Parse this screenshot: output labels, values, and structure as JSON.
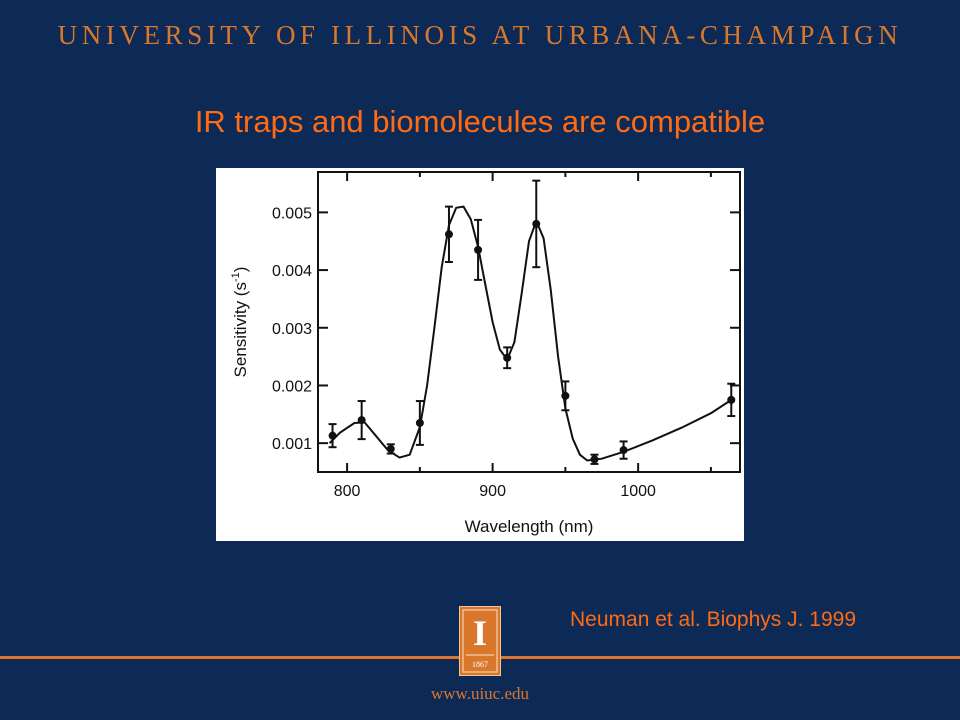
{
  "header": {
    "institution": "UNIVERSITY OF ILLINOIS AT URBANA-CHAMPAIGN"
  },
  "slide": {
    "title": "IR traps and biomolecules are compatible",
    "citation": "Neuman et al. Biophys J. 1999"
  },
  "footer": {
    "url": "www.uiuc.edu",
    "logo_year": "1867",
    "logo_letter": "I"
  },
  "colors": {
    "background": "#0c2a55",
    "accent_orange": "#ff6a13",
    "header_orange": "#d9782d",
    "chart_background": "#ffffff",
    "chart_ink": "#111111"
  },
  "chart_data": {
    "type": "scatter",
    "title": "",
    "xlabel": "Wavelength (nm)",
    "ylabel": "Sensitivity (s⁻¹)",
    "ylabel_base": "Sensitivity (s",
    "ylabel_sup": "-1",
    "ylabel_end": ")",
    "xlim": [
      780,
      1070
    ],
    "ylim": [
      0.0005,
      0.0057
    ],
    "xticks": [
      800,
      900,
      1000
    ],
    "xtick_labels": [
      "800",
      "900",
      "1000"
    ],
    "yticks": [
      0.001,
      0.002,
      0.003,
      0.004,
      0.005
    ],
    "ytick_labels": [
      "0.001",
      "0.002",
      "0.003",
      "0.004",
      "0.005"
    ],
    "grid": false,
    "legend": "none",
    "points": [
      {
        "x": 790,
        "y": 0.00113,
        "err": 0.0002
      },
      {
        "x": 810,
        "y": 0.0014,
        "err": 0.00033
      },
      {
        "x": 830,
        "y": 0.0009,
        "err": 8e-05
      },
      {
        "x": 850,
        "y": 0.00135,
        "err": 0.00038
      },
      {
        "x": 870,
        "y": 0.00462,
        "err": 0.00048
      },
      {
        "x": 890,
        "y": 0.00435,
        "err": 0.00052
      },
      {
        "x": 910,
        "y": 0.00248,
        "err": 0.00018
      },
      {
        "x": 930,
        "y": 0.0048,
        "err": 0.00075
      },
      {
        "x": 950,
        "y": 0.00182,
        "err": 0.00025
      },
      {
        "x": 970,
        "y": 0.00072,
        "err": 8e-05
      },
      {
        "x": 990,
        "y": 0.00088,
        "err": 0.00015
      },
      {
        "x": 1064,
        "y": 0.00175,
        "err": 0.00028
      }
    ],
    "fit_curve": [
      [
        788,
        0.001
      ],
      [
        795,
        0.00118
      ],
      [
        805,
        0.00135
      ],
      [
        812,
        0.00136
      ],
      [
        820,
        0.00112
      ],
      [
        828,
        0.00088
      ],
      [
        836,
        0.00075
      ],
      [
        843,
        0.0008
      ],
      [
        850,
        0.00128
      ],
      [
        855,
        0.002
      ],
      [
        860,
        0.003
      ],
      [
        865,
        0.00405
      ],
      [
        870,
        0.00478
      ],
      [
        875,
        0.00508
      ],
      [
        880,
        0.0051
      ],
      [
        885,
        0.00488
      ],
      [
        890,
        0.0044
      ],
      [
        895,
        0.00375
      ],
      [
        900,
        0.0031
      ],
      [
        905,
        0.00262
      ],
      [
        910,
        0.00245
      ],
      [
        915,
        0.00275
      ],
      [
        920,
        0.0036
      ],
      [
        925,
        0.0045
      ],
      [
        930,
        0.00485
      ],
      [
        935,
        0.00455
      ],
      [
        940,
        0.00365
      ],
      [
        945,
        0.0025
      ],
      [
        950,
        0.0016
      ],
      [
        955,
        0.00108
      ],
      [
        960,
        0.0008
      ],
      [
        965,
        0.0007
      ],
      [
        975,
        0.00073
      ],
      [
        990,
        0.00085
      ],
      [
        1010,
        0.00105
      ],
      [
        1030,
        0.00127
      ],
      [
        1050,
        0.00152
      ],
      [
        1064,
        0.00175
      ]
    ]
  }
}
